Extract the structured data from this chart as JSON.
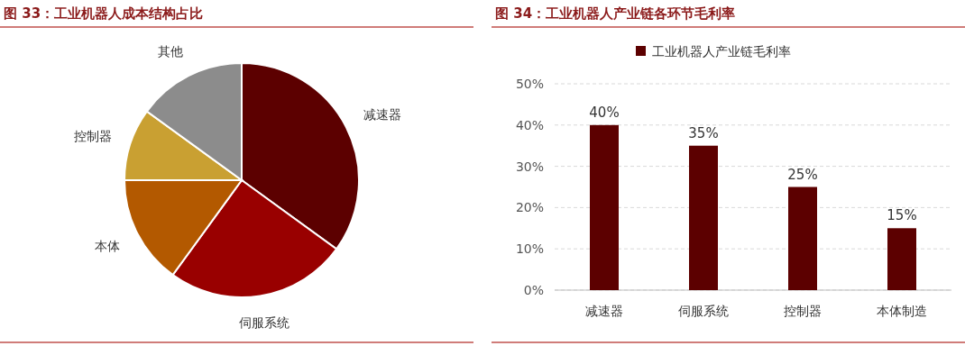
{
  "chart_data": [
    {
      "type": "pie",
      "title": "图 33：工业机器人成本结构占比",
      "categories": [
        "减速器",
        "伺服系统",
        "本体",
        "控制器",
        "其他"
      ],
      "values": [
        35,
        25,
        15,
        10,
        15
      ],
      "colors": [
        "#5c0000",
        "#990000",
        "#b35900",
        "#c9a032",
        "#8c8c8c"
      ]
    },
    {
      "type": "bar",
      "title": "图 34：工业机器人产业链各环节毛利率",
      "categories": [
        "减速器",
        "伺服系统",
        "控制器",
        "本体制造"
      ],
      "series": [
        {
          "name": "工业机器人产业链毛利率",
          "color": "#5c0000",
          "values": [
            40,
            35,
            25,
            15
          ],
          "value_labels": [
            "40%",
            "35%",
            "25%",
            "15%"
          ]
        }
      ],
      "ylim": [
        0,
        50
      ],
      "yticks": [
        {
          "value": 0,
          "label": "0%"
        },
        {
          "value": 10,
          "label": "10%"
        },
        {
          "value": 20,
          "label": "20%"
        },
        {
          "value": 30,
          "label": "30%"
        },
        {
          "value": 40,
          "label": "40%"
        },
        {
          "value": 50,
          "label": "50%"
        }
      ],
      "grid": "y",
      "legend": "top"
    }
  ]
}
